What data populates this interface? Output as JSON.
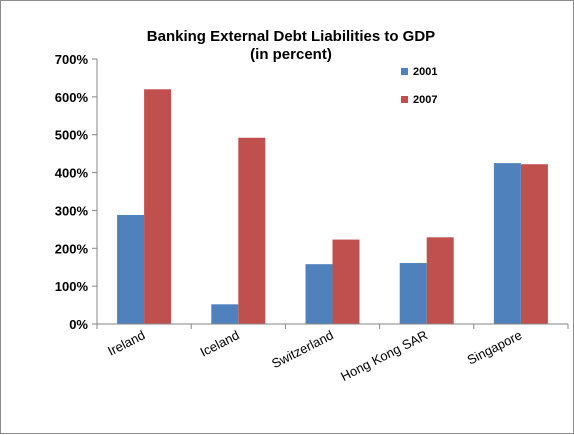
{
  "chart_data": {
    "type": "bar",
    "title": "Banking External  Debt Liabilities to GDP",
    "subtitle": "(in percent)",
    "categories": [
      "Ireland",
      "Iceland",
      "Switzerland",
      "Hong Kong SAR",
      "Singapore"
    ],
    "series": [
      {
        "name": "2001",
        "color": "#4f81bd",
        "values": [
          288,
          52,
          158,
          161,
          425
        ]
      },
      {
        "name": "2007",
        "color": "#c0504d",
        "values": [
          620,
          492,
          223,
          229,
          422
        ]
      }
    ],
    "ylim": [
      0,
      700
    ],
    "ytick_step": 100,
    "ytick_labels": [
      "0%",
      "100%",
      "200%",
      "300%",
      "400%",
      "500%",
      "600%",
      "700%"
    ],
    "xlabel": "",
    "ylabel": "",
    "grid": false,
    "legend_position": "top-right"
  }
}
